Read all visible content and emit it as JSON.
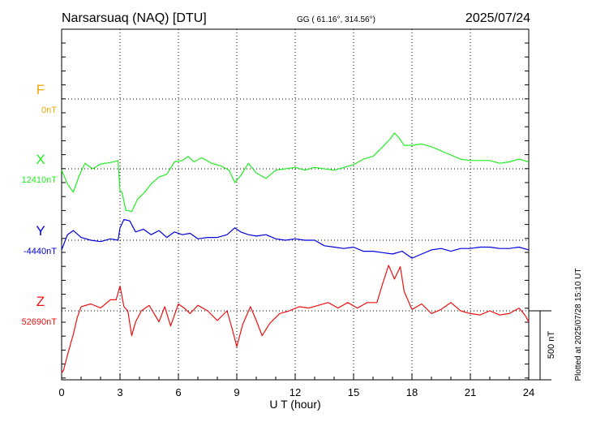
{
  "header": {
    "station": "Narsarsuaq (NAQ)  [DTU]",
    "coords": "GG ( 61.16°, 314.56°)",
    "date": "2025/07/24"
  },
  "plotted_note": "Plotted at 2025/07/28 15:10 UT",
  "chart_data": {
    "type": "line",
    "xlabel": "U T (hour)",
    "xlim": [
      0,
      24
    ],
    "xticks": [
      "0",
      "3",
      "6",
      "9",
      "12",
      "15",
      "18",
      "21",
      "24"
    ],
    "scale_bar": {
      "label": "500 nT",
      "value_nT": 500
    },
    "series": [
      {
        "name": "F",
        "baseline_label": "0nT",
        "color": "#f0a800",
        "baseline_nT": 0,
        "x": [],
        "values": []
      },
      {
        "name": "X",
        "baseline_label": "12410nT",
        "color": "#22ee22",
        "baseline_nT": 12410,
        "x": [
          0,
          0.3,
          0.6,
          0.9,
          1.2,
          1.6,
          2.0,
          2.5,
          2.9,
          3.0,
          3.1,
          3.3,
          3.6,
          3.9,
          4.2,
          4.6,
          5.0,
          5.4,
          5.8,
          6.2,
          6.5,
          6.8,
          7.2,
          7.7,
          8.2,
          8.6,
          8.9,
          9.2,
          9.6,
          10.0,
          10.5,
          11.0,
          11.5,
          12.0,
          12.5,
          13.0,
          13.5,
          14.0,
          14.5,
          15.0,
          15.5,
          16.0,
          16.5,
          16.9,
          17.1,
          17.3,
          17.6,
          18.0,
          18.5,
          19.0,
          19.5,
          20.0,
          20.5,
          21.0,
          21.5,
          22.0,
          22.5,
          23.0,
          23.5,
          24.0
        ],
        "values": [
          -10,
          -110,
          -170,
          -50,
          40,
          0,
          35,
          45,
          60,
          -160,
          -170,
          -300,
          -310,
          -220,
          -180,
          -110,
          -60,
          -40,
          50,
          60,
          90,
          50,
          80,
          40,
          20,
          -10,
          -100,
          -50,
          40,
          -30,
          -70,
          -10,
          0,
          10,
          -10,
          10,
          0,
          -10,
          10,
          30,
          70,
          90,
          160,
          220,
          260,
          230,
          170,
          170,
          180,
          160,
          130,
          100,
          70,
          60,
          60,
          60,
          40,
          50,
          70,
          50
        ]
      },
      {
        "name": "Y",
        "baseline_label": "-4440nT",
        "color": "#0000dd",
        "baseline_nT": -4440,
        "x": [
          0,
          0.3,
          0.6,
          1.0,
          1.5,
          2.0,
          2.5,
          2.9,
          3.0,
          3.2,
          3.5,
          3.8,
          4.2,
          4.6,
          5.0,
          5.4,
          5.8,
          6.2,
          6.6,
          7.0,
          7.5,
          8.0,
          8.5,
          8.9,
          9.2,
          9.6,
          10.0,
          10.5,
          11.0,
          11.5,
          12.0,
          12.5,
          13.0,
          13.5,
          14.0,
          14.5,
          15.0,
          15.5,
          16.0,
          16.5,
          17.0,
          17.5,
          18.0,
          18.5,
          19.0,
          19.5,
          20.0,
          20.5,
          21.0,
          21.5,
          22.0,
          22.5,
          23.0,
          23.5,
          24.0
        ],
        "values": [
          -70,
          40,
          70,
          20,
          0,
          -10,
          10,
          0,
          90,
          150,
          140,
          60,
          80,
          40,
          70,
          20,
          60,
          40,
          50,
          10,
          20,
          20,
          40,
          90,
          60,
          40,
          30,
          40,
          10,
          0,
          10,
          0,
          0,
          -40,
          -50,
          -60,
          -50,
          -80,
          -80,
          -90,
          -100,
          -80,
          -130,
          -100,
          -70,
          -60,
          -80,
          -60,
          -60,
          -50,
          -50,
          -60,
          -60,
          -50,
          -70
        ]
      },
      {
        "name": "Z",
        "baseline_label": "52690nT",
        "color": "#ee1111",
        "baseline_nT": 52690,
        "x": [
          0,
          0.1,
          0.3,
          0.6,
          0.8,
          1.0,
          1.5,
          2.0,
          2.5,
          2.8,
          3.0,
          3.2,
          3.4,
          3.6,
          3.8,
          4.1,
          4.5,
          5.0,
          5.3,
          5.6,
          6.0,
          6.3,
          6.6,
          7.0,
          7.5,
          8.0,
          8.5,
          8.8,
          9.0,
          9.3,
          9.7,
          10.0,
          10.3,
          10.7,
          11.2,
          11.7,
          12.2,
          12.7,
          13.2,
          13.7,
          14.2,
          14.7,
          15.2,
          15.7,
          16.2,
          16.5,
          16.8,
          17.1,
          17.4,
          17.6,
          18.0,
          18.5,
          19.0,
          19.5,
          20.0,
          20.5,
          21.0,
          21.5,
          22.0,
          22.5,
          23.0,
          23.5,
          23.8,
          24.0
        ],
        "values": [
          -450,
          -430,
          -320,
          -170,
          -50,
          30,
          50,
          20,
          80,
          80,
          180,
          30,
          0,
          -180,
          -80,
          0,
          40,
          -80,
          30,
          -110,
          50,
          20,
          -20,
          40,
          0,
          -70,
          0,
          -150,
          -260,
          -100,
          30,
          -70,
          -180,
          -90,
          -20,
          0,
          30,
          20,
          40,
          60,
          20,
          60,
          20,
          60,
          60,
          200,
          330,
          230,
          320,
          140,
          10,
          50,
          -20,
          10,
          60,
          0,
          -20,
          -30,
          0,
          -30,
          -20,
          20,
          -30,
          -80
        ]
      }
    ]
  }
}
